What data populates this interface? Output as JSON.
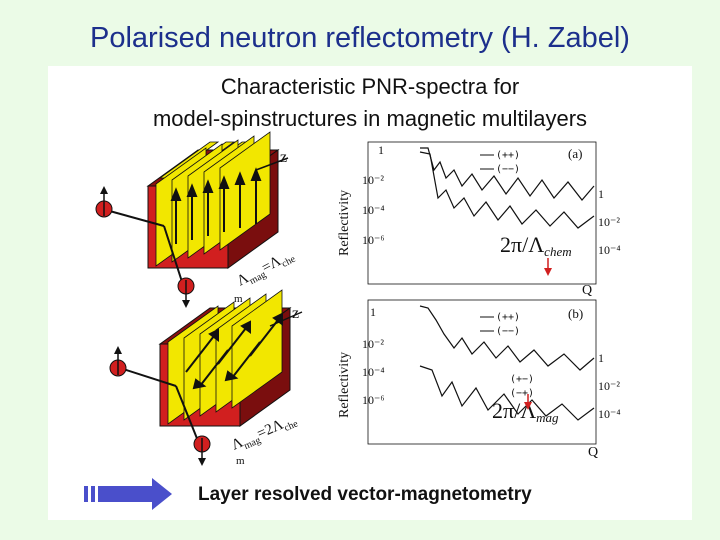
{
  "slide": {
    "title": "Polarised neutron reflectometry (H. Zabel)"
  },
  "figure": {
    "heading_line1": "Characteristic PNR-spectra for",
    "heading_line2": "model-spinstructures in magnetic multilayers",
    "footer": "Layer resolved vector-magnetometry",
    "top_plot": {
      "label": "(a)",
      "ylabel": "Reflectivity",
      "left_ticks": [
        "1",
        "10⁻²",
        "10⁻⁴",
        "10⁻⁶"
      ],
      "right_ticks": [
        "1",
        "10⁻²",
        "10⁻⁴"
      ],
      "legend": [
        "(++)",
        "(−−)"
      ],
      "peak_label": "2π/Λ",
      "peak_sub": "chem",
      "xlabel": "Q"
    },
    "bottom_plot": {
      "label": "(b)",
      "ylabel": "Reflectivity",
      "left_ticks": [
        "1",
        "10⁻²",
        "10⁻⁴",
        "10⁻⁶"
      ],
      "right_ticks": [
        "1",
        "10⁻²",
        "10⁻⁴"
      ],
      "legend_top": [
        "(++)",
        "(−−)"
      ],
      "legend_bottom": [
        "(+−)",
        "(−+)"
      ],
      "peak_label": "2π/Λ",
      "peak_sub": "mag",
      "xlabel": "Q"
    },
    "top_model": {
      "axis": "z",
      "relation_lambda": "Λ",
      "relation_text": "mag",
      "relation_eq": "=Λ",
      "relation_sub": "che",
      "trail": "m"
    },
    "bottom_model": {
      "axis": "z",
      "relation_lambda": "Λ",
      "relation_text": "mag",
      "relation_eq": "=2Λ",
      "relation_sub": "che",
      "trail": "m"
    },
    "colors": {
      "block": "#d11f1f",
      "stripe": "#f2e700",
      "arrow": "#4a4fcb",
      "title": "#1c2f8c"
    }
  }
}
